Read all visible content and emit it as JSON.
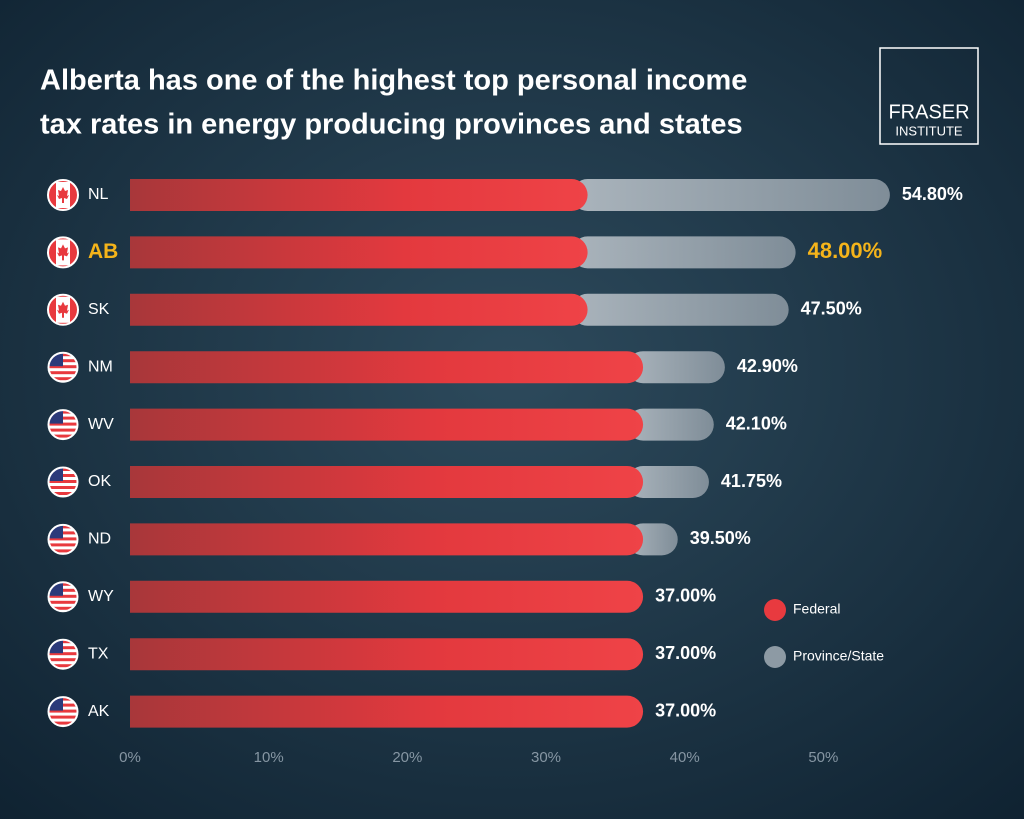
{
  "chart_data": {
    "type": "stacked-bar-horizontal",
    "title": [
      "Alberta has one of the highest top personal income",
      "tax rates in energy producing provinces and states"
    ],
    "logo": [
      "FRASER",
      "INSTITUTE"
    ],
    "categories": [
      "NL",
      "AB",
      "SK",
      "NM",
      "WV",
      "OK",
      "ND",
      "WY",
      "TX",
      "AK"
    ],
    "category_colors": [
      "#ffffff",
      "#f5b41a",
      "#ffffff",
      "#ffffff",
      "#ffffff",
      "#ffffff",
      "#ffffff",
      "#ffffff",
      "#ffffff",
      "#ffffff"
    ],
    "series": [
      {
        "name": "Federal",
        "color": "#e83a3f",
        "values": [
          33,
          33,
          33,
          37,
          37,
          37,
          37,
          37,
          37,
          37
        ]
      },
      {
        "name": "Province/State",
        "color": "#8d9aa4",
        "values": [
          21.8,
          15,
          14.5,
          5.9,
          5.1,
          4.75,
          2.5,
          0,
          0,
          0
        ]
      }
    ],
    "totals": [
      54.8,
      48,
      47.5,
      42.9,
      42.1,
      41.75,
      39.5,
      37,
      37,
      37
    ],
    "total_labels": [
      "54.80%",
      "48.00%",
      "47.50%",
      "42.90%",
      "42.10%",
      "41.75%",
      "39.50%",
      "37.00%",
      "37.00%",
      "37.00%"
    ],
    "xlim": [
      0,
      60
    ],
    "xticks": [
      {
        "value": 0,
        "label": "0%"
      },
      {
        "value": 10,
        "label": "10%"
      },
      {
        "value": 20,
        "label": "20%"
      },
      {
        "value": 30,
        "label": "30%"
      },
      {
        "value": 40,
        "label": "40%"
      },
      {
        "value": 50,
        "label": "50%"
      }
    ]
  }
}
